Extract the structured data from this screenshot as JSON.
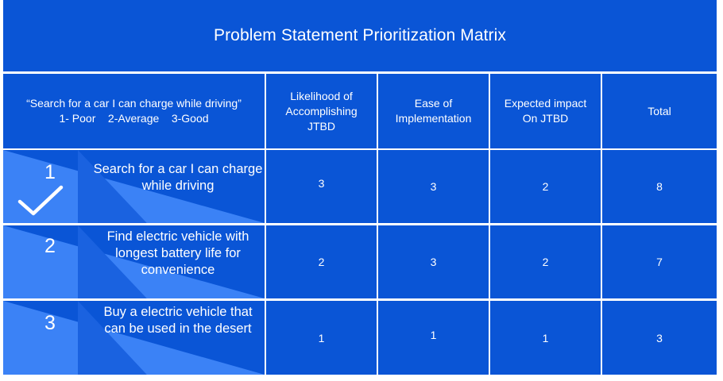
{
  "title": "Problem Statement Prioritization Matrix",
  "header": {
    "criteria_line1": "“Search for a car I can charge while driving”",
    "criteria_line2": "1- Poor    2-Average    3-Good",
    "columns": [
      "Likelihood of Accomplishing JTBD",
      "Ease of Implementation",
      "Expected impact On JTBD",
      "Total"
    ]
  },
  "rows": [
    {
      "rank": "1",
      "problem": "Search for a car I can charge while driving",
      "selected": true,
      "likelihood": "3",
      "ease": "3",
      "impact": "2",
      "total": "8"
    },
    {
      "rank": "2",
      "problem": "Find electric vehicle with longest battery life for convenience",
      "selected": false,
      "likelihood": "2",
      "ease": "3",
      "impact": "2",
      "total": "7"
    },
    {
      "rank": "3",
      "problem": "Buy a electric vehicle that can be used in the desert",
      "selected": false,
      "likelihood": "1",
      "ease": "1",
      "impact": "1",
      "total": "3"
    }
  ],
  "colors": {
    "cell": "#0a55d6",
    "triangle_light": "#3b82f6",
    "triangle_mid": "#1a62e0",
    "text": "#ffffff"
  },
  "icons": {
    "selected_marker": "checkmark-icon"
  }
}
